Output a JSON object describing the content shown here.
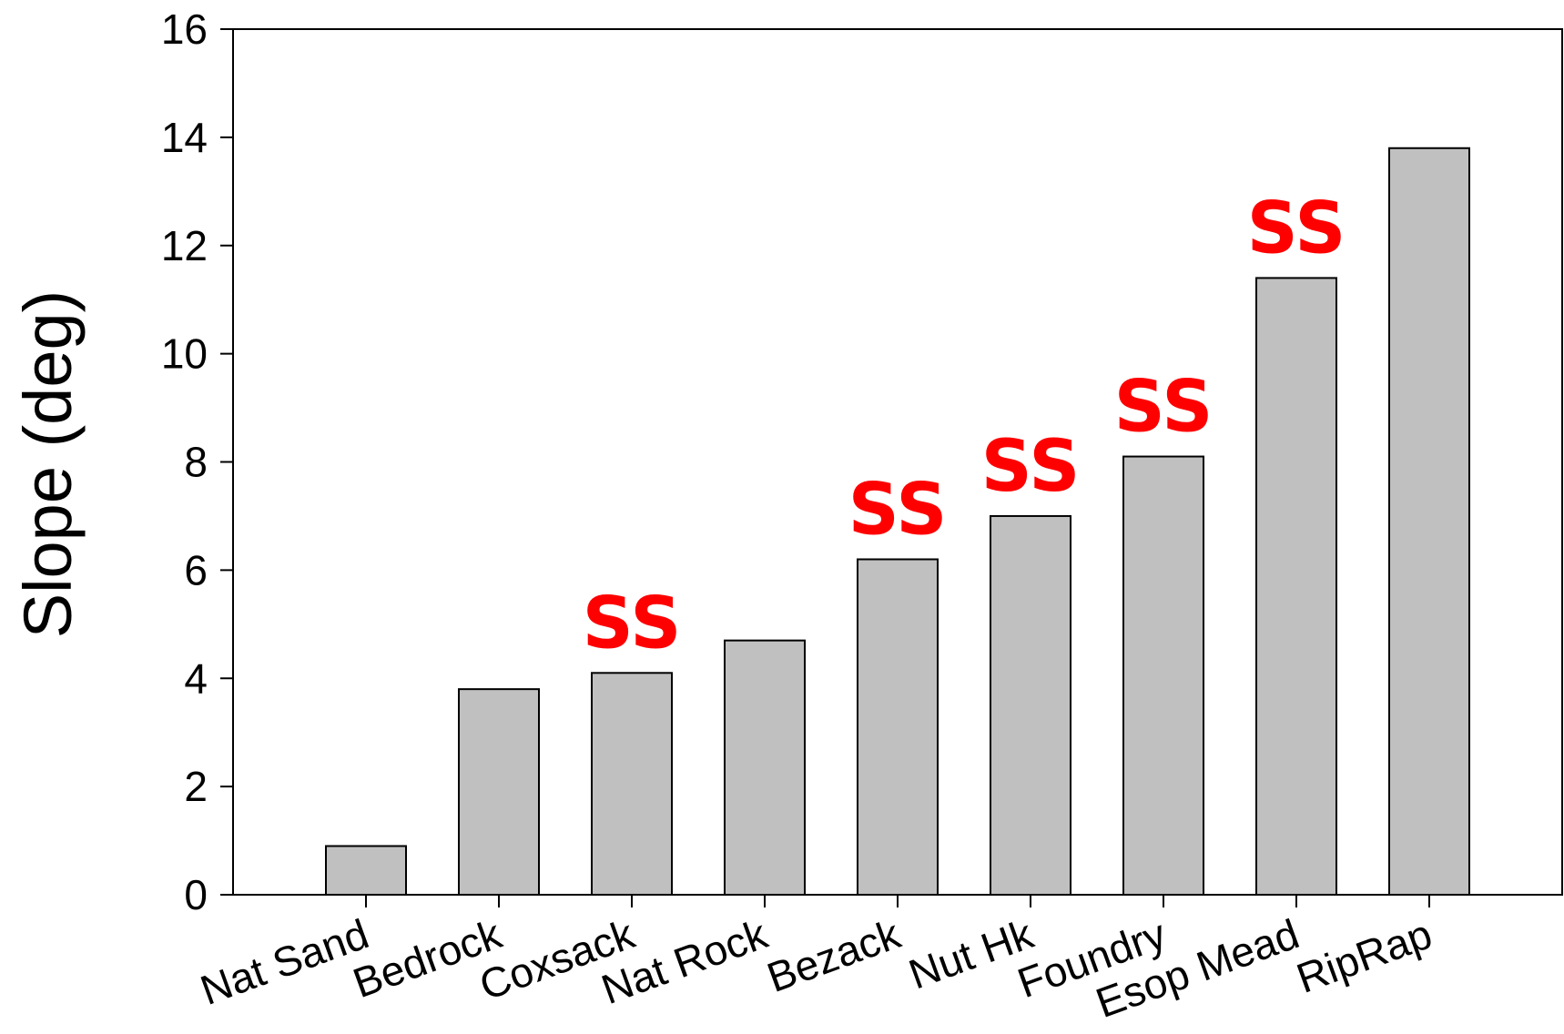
{
  "chart_data": {
    "type": "bar",
    "title": "",
    "xlabel": "",
    "ylabel": "Slope (deg)",
    "ylim": [
      0,
      16
    ],
    "yticks": [
      0,
      2,
      4,
      6,
      8,
      10,
      12,
      14,
      16
    ],
    "grid": false,
    "categories": [
      "Nat Sand",
      "Bedrock",
      "Coxsack",
      "Nat Rock",
      "Bezack",
      "Nut Hk",
      "Foundry",
      "Esop Mead",
      "RipRap"
    ],
    "values": [
      0.9,
      3.8,
      4.1,
      4.7,
      6.2,
      7.0,
      8.1,
      11.4,
      13.8
    ],
    "annotations": [
      "",
      "",
      "SS",
      "",
      "SS",
      "SS",
      "SS",
      "SS",
      ""
    ],
    "colors": {
      "bar_fill": "#c0c0c0",
      "bar_stroke": "#000000",
      "annotation": "#ff0000"
    }
  }
}
